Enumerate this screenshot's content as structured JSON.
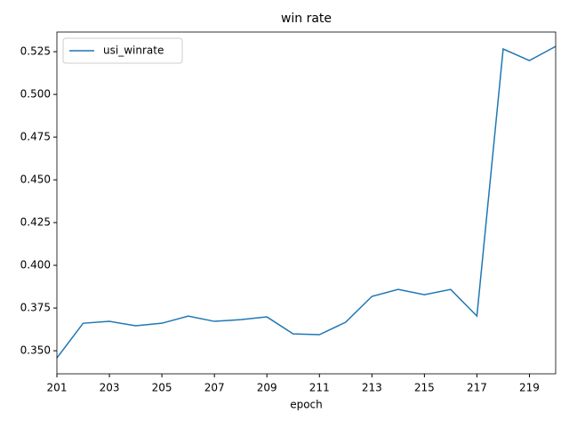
{
  "chart_data": {
    "type": "line",
    "title": "win rate",
    "x_label": "epoch",
    "x": [
      201,
      202,
      203,
      204,
      205,
      206,
      207,
      208,
      209,
      210,
      211,
      212,
      213,
      214,
      215,
      216,
      217,
      218,
      219,
      220
    ],
    "series": [
      {
        "name": "usi_winrate",
        "color": "#1f77b4",
        "values": [
          0.3458,
          0.3661,
          0.3672,
          0.3646,
          0.3661,
          0.3703,
          0.3672,
          0.3682,
          0.3698,
          0.3599,
          0.3594,
          0.3667,
          0.3818,
          0.3859,
          0.3828,
          0.3859,
          0.3703,
          0.5266,
          0.5198,
          0.5281
        ]
      }
    ],
    "xlim": [
      201,
      220
    ],
    "xticks": [
      201,
      203,
      205,
      207,
      209,
      211,
      213,
      215,
      217,
      219
    ],
    "ylim": [
      0.3365,
      0.5365
    ],
    "yticks": [
      {
        "value": 0.35,
        "label": "0.350"
      },
      {
        "value": 0.375,
        "label": "0.375"
      },
      {
        "value": 0.4,
        "label": "0.400"
      },
      {
        "value": 0.425,
        "label": "0.425"
      },
      {
        "value": 0.45,
        "label": "0.450"
      },
      {
        "value": 0.475,
        "label": "0.475"
      },
      {
        "value": 0.5,
        "label": "0.500"
      },
      {
        "value": 0.525,
        "label": "0.525"
      }
    ],
    "legend": "upper left"
  }
}
